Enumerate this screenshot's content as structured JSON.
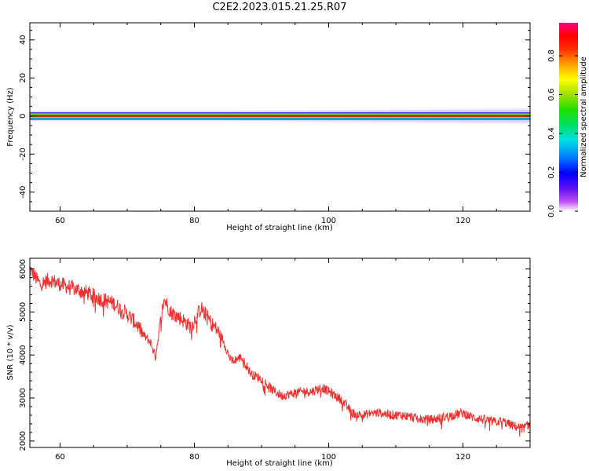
{
  "title": "C2E2.2023.015.21.25.R07",
  "chart_data": [
    {
      "type": "heatmap",
      "xlabel": "Height of straight line (km)",
      "ylabel": "Frequency (Hz)",
      "xlim": [
        55.5,
        130
      ],
      "ylim": [
        -50,
        49
      ],
      "x_ticks": [
        60,
        80,
        100,
        120
      ],
      "y_ticks": [
        -40,
        -20,
        0,
        20,
        40
      ],
      "colorbar": {
        "label": "Normalized spectral amplitude",
        "range": [
          0,
          0.97
        ],
        "ticks": [
          0.0,
          0.2,
          0.4,
          0.6,
          0.8
        ]
      },
      "description_values": {
        "peak_frequency": 0,
        "line_half_width_hz": 2
      }
    },
    {
      "type": "line",
      "xlabel": "Height of straight line (km)",
      "ylabel": "SNR (10 * v/v)",
      "xlim": [
        55.5,
        130
      ],
      "ylim": [
        1850,
        6250
      ],
      "x_ticks": [
        60,
        80,
        100,
        120
      ],
      "y_ticks": [
        2000,
        3000,
        4000,
        5000,
        6000
      ],
      "color": "#ef3030",
      "x": [
        55.5,
        57,
        58.5,
        60,
        62,
        64,
        66,
        68,
        70,
        71.5,
        72.5,
        73.5,
        74.2,
        74.8,
        75.5,
        76.5,
        78,
        79.5,
        81,
        82.5,
        84,
        85.5,
        87,
        88.5,
        90,
        91.5,
        93,
        94.5,
        96,
        97.5,
        99,
        100.5,
        102,
        103.5,
        105,
        106.5,
        108,
        109.5,
        111,
        112.5,
        114,
        115.5,
        117,
        118.5,
        120,
        121.5,
        123,
        124.5,
        126,
        127.5,
        129,
        130
      ],
      "values": [
        6000,
        5650,
        5750,
        5650,
        5550,
        5450,
        5300,
        5200,
        4950,
        4700,
        4450,
        4300,
        3950,
        4600,
        5300,
        5000,
        4850,
        4650,
        5100,
        4750,
        4450,
        3850,
        3950,
        3550,
        3450,
        3200,
        3050,
        3100,
        3150,
        3150,
        3250,
        3100,
        2950,
        2650,
        2600,
        2650,
        2650,
        2600,
        2600,
        2550,
        2500,
        2500,
        2550,
        2600,
        2650,
        2550,
        2500,
        2450,
        2450,
        2350,
        2300,
        2400
      ]
    }
  ]
}
